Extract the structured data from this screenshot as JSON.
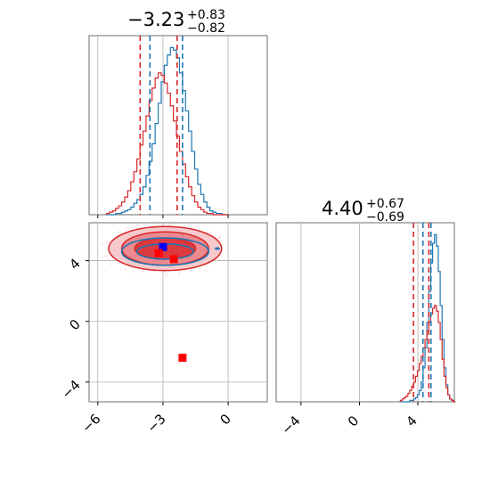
{
  "chart_data": [
    {
      "type": "histogram",
      "panel": "top-left",
      "title": {
        "value": "−3.23",
        "plus": "+0.83",
        "minus": "−0.82"
      },
      "xlim": [
        -6.4,
        1.8
      ],
      "grid": true,
      "series": [
        {
          "name": "",
          "color": "#1f77b4",
          "bin_start": -5.6,
          "bin_width": 0.14,
          "counts": [
            0,
            0,
            0,
            1,
            1,
            2,
            3,
            4,
            6,
            9,
            12,
            16,
            22,
            31,
            42,
            56,
            72,
            88,
            105,
            118,
            126,
            132,
            130,
            124,
            112,
            98,
            82,
            66,
            50,
            36,
            24,
            16,
            10,
            6,
            3,
            2,
            1,
            1,
            0,
            0
          ]
        },
        {
          "name": "",
          "color": "#d62728",
          "bin_start": -5.6,
          "bin_width": 0.14,
          "counts": [
            1,
            2,
            3,
            5,
            7,
            10,
            14,
            19,
            26,
            34,
            44,
            55,
            66,
            78,
            90,
            100,
            108,
            112,
            110,
            104,
            96,
            86,
            74,
            62,
            50,
            40,
            30,
            22,
            15,
            10,
            6,
            4,
            2,
            1,
            1,
            0,
            0,
            0,
            0,
            0
          ]
        }
      ],
      "vlines": [
        {
          "x": -4.05,
          "color": "#d62728"
        },
        {
          "x": -2.35,
          "color": "#d62728"
        },
        {
          "x": -3.6,
          "color": "#1f77b4"
        },
        {
          "x": -2.1,
          "color": "#1f77b4"
        }
      ]
    },
    {
      "type": "contour",
      "panel": "bottom-left",
      "xlim": [
        -6.4,
        1.8
      ],
      "ylim": [
        -5.3,
        6.5
      ],
      "xticks": [
        "−6",
        "−3",
        "0"
      ],
      "yticks": [
        "−4",
        "0",
        "4"
      ],
      "xtick_values": [
        -6,
        -3,
        0
      ],
      "ytick_values": [
        -4,
        0,
        4
      ],
      "grid": true,
      "contours": [
        {
          "color": "#d62728",
          "cx": -2.9,
          "cy": 4.8,
          "rx": [
            2.6,
            2.0,
            1.4
          ],
          "ry": [
            1.45,
            1.1,
            0.7
          ]
        },
        {
          "color": "#1f77b4",
          "cx": -2.9,
          "cy": 4.6,
          "rx": [
            2.0,
            1.3
          ],
          "ry": [
            0.9,
            0.5
          ]
        }
      ],
      "markers": [
        {
          "x": -3.0,
          "y": 4.9,
          "color": "#0000ff"
        },
        {
          "x": -3.2,
          "y": 4.5,
          "color": "#ff0000"
        },
        {
          "x": -2.5,
          "y": 4.1,
          "color": "#ff0000"
        },
        {
          "x": -2.1,
          "y": -2.4,
          "color": "#ff0000"
        }
      ],
      "outlier": {
        "x": -0.5,
        "y": 4.8,
        "color": "#1f77b4"
      }
    },
    {
      "type": "histogram",
      "panel": "bottom-right",
      "title": {
        "value": "4.40",
        "plus": "+0.67",
        "minus": "−0.69"
      },
      "xlim": [
        -5.7,
        6.5
      ],
      "xticks": [
        "−4",
        "0",
        "4"
      ],
      "xtick_values": [
        -4,
        0,
        4
      ],
      "grid": true,
      "series": [
        {
          "name": "",
          "color": "#1f77b4",
          "bin_start": 2.8,
          "bin_width": 0.13,
          "counts": [
            0,
            0,
            0,
            0,
            0,
            1,
            1,
            2,
            3,
            5,
            8,
            14,
            24,
            38,
            56,
            78,
            98,
            112,
            118,
            110,
            92,
            68,
            44,
            24,
            12,
            5,
            2,
            1,
            0
          ]
        },
        {
          "name": "",
          "color": "#d62728",
          "bin_start": 2.8,
          "bin_width": 0.13,
          "counts": [
            1,
            2,
            3,
            4,
            6,
            8,
            11,
            14,
            18,
            22,
            27,
            32,
            38,
            44,
            50,
            56,
            62,
            66,
            68,
            64,
            56,
            44,
            30,
            18,
            10,
            5,
            2,
            1,
            0
          ]
        }
      ],
      "vlines": [
        {
          "x": 3.7,
          "color": "#d62728"
        },
        {
          "x": 4.75,
          "color": "#d62728"
        },
        {
          "x": 4.35,
          "color": "#1f77b4"
        },
        {
          "x": 4.9,
          "color": "#1f77b4"
        }
      ]
    }
  ]
}
